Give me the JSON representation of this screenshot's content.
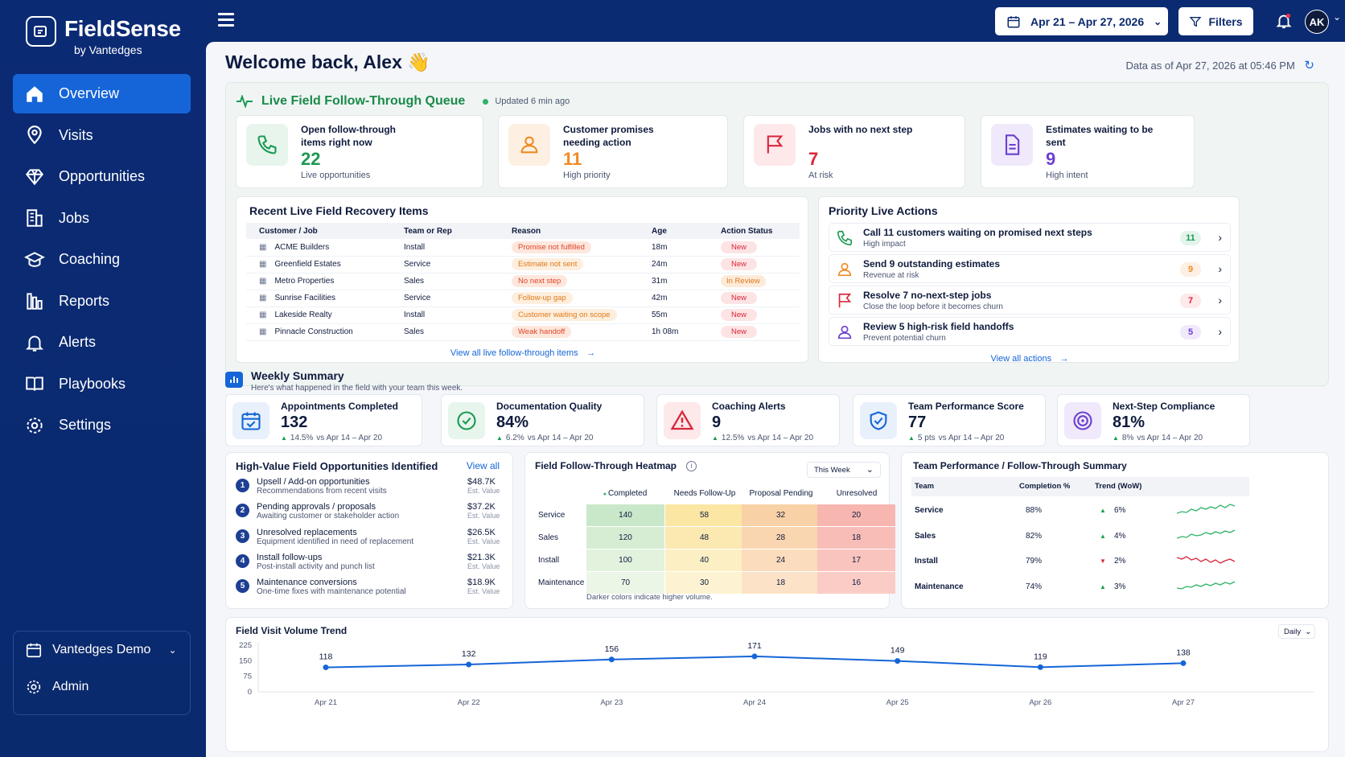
{
  "brand": {
    "name": "FieldSense",
    "byline": "by Vantedges"
  },
  "nav": [
    {
      "label": "Overview",
      "icon": "home-icon",
      "active": true
    },
    {
      "label": "Visits",
      "icon": "map-pin-icon"
    },
    {
      "label": "Opportunities",
      "icon": "diamond-icon"
    },
    {
      "label": "Jobs",
      "icon": "building-icon"
    },
    {
      "label": "Coaching",
      "icon": "graduation-cap-icon"
    },
    {
      "label": "Reports",
      "icon": "bar-chart-icon"
    },
    {
      "label": "Alerts",
      "icon": "bell-icon"
    },
    {
      "label": "Playbooks",
      "icon": "book-icon"
    },
    {
      "label": "Settings",
      "icon": "gear-icon"
    }
  ],
  "org": {
    "name": "Vantedges Demo",
    "admin": "Admin"
  },
  "topbar": {
    "date_range": "Apr 21 – Apr 27, 2026",
    "filters": "Filters",
    "avatar": "AK"
  },
  "header": {
    "welcome": "Welcome back, Alex 👋",
    "as_of": "Data as of Apr 27, 2026 at 05:46 PM"
  },
  "queue": {
    "title": "Live Field Follow-Through Queue",
    "updated": "Updated 6 min ago",
    "kpis": [
      {
        "label": "Open follow-through items right now",
        "value": "22",
        "sub": "Live opportunities",
        "color": "#1a9a52",
        "bg": "#e7f5ec",
        "icon": "phone-icon"
      },
      {
        "label": "Customer promises needing action",
        "value": "11",
        "sub": "High priority",
        "color": "#f08a24",
        "bg": "#fdf0e2",
        "icon": "user-icon"
      },
      {
        "label": "Jobs with no next step",
        "value": "7",
        "sub": "At risk",
        "color": "#d9263a",
        "bg": "#fde8ea",
        "icon": "flag-icon"
      },
      {
        "label": "Estimates waiting to be sent",
        "value": "9",
        "sub": "High intent",
        "color": "#6b3fd1",
        "bg": "#efe9fb",
        "icon": "document-icon"
      }
    ]
  },
  "recent": {
    "title": "Recent Live Field Recovery Items",
    "columns": [
      "Customer / Job",
      "Team or Rep",
      "Reason",
      "Age",
      "Action Status"
    ],
    "rows": [
      {
        "customer": "ACME Builders",
        "team": "Install",
        "reason": "Promise not fulfilled",
        "reason_tone": "r",
        "age": "18m",
        "status": "New"
      },
      {
        "customer": "Greenfield Estates",
        "team": "Service",
        "reason": "Estimate not sent",
        "reason_tone": "o",
        "age": "24m",
        "status": "New"
      },
      {
        "customer": "Metro Properties",
        "team": "Sales",
        "reason": "No next step",
        "reason_tone": "r",
        "age": "31m",
        "status": "In Review"
      },
      {
        "customer": "Sunrise Facilities",
        "team": "Service",
        "reason": "Follow-up gap",
        "reason_tone": "o",
        "age": "42m",
        "status": "New"
      },
      {
        "customer": "Lakeside Realty",
        "team": "Install",
        "reason": "Customer waiting on scope",
        "reason_tone": "o",
        "age": "55m",
        "status": "New"
      },
      {
        "customer": "Pinnacle Construction",
        "team": "Sales",
        "reason": "Weak handoff",
        "reason_tone": "r",
        "age": "1h 08m",
        "status": "New"
      }
    ],
    "view_all": "View all live follow-through items"
  },
  "priority": {
    "title": "Priority Live Actions",
    "items": [
      {
        "title": "Call 11 customers waiting on promised next steps",
        "sub": "High impact",
        "count": "11",
        "color": "#1a9a52",
        "bg": "#e3f4ea",
        "icon": "phone-icon"
      },
      {
        "title": "Send 9 outstanding estimates",
        "sub": "Revenue at risk",
        "count": "9",
        "color": "#f08a24",
        "bg": "#fdf0e2",
        "icon": "user-icon"
      },
      {
        "title": "Resolve 7 no-next-step jobs",
        "sub": "Close the loop before it becomes churn",
        "count": "7",
        "color": "#d9263a",
        "bg": "#fde8ea",
        "icon": "flag-icon"
      },
      {
        "title": "Review 5 high-risk field handoffs",
        "sub": "Prevent potential churn",
        "count": "5",
        "color": "#6b3fd1",
        "bg": "#efe9fb",
        "icon": "user-icon"
      }
    ],
    "view_all": "View all actions"
  },
  "weekly": {
    "title": "Weekly Summary",
    "subtitle": "Here's what happened in the field with your team this week.",
    "stats": [
      {
        "label": "Appointments Completed",
        "value": "132",
        "delta": "14.5%",
        "period": "vs Apr 14 – Apr 20",
        "color": "#1565d8",
        "bg": "#e8f0fc",
        "icon": "calendar-check-icon"
      },
      {
        "label": "Documentation Quality",
        "value": "84%",
        "delta": "6.2%",
        "period": "vs Apr 14 – Apr 20",
        "color": "#1a9a52",
        "bg": "#e7f5ec",
        "icon": "check-circle-icon"
      },
      {
        "label": "Coaching Alerts",
        "value": "9",
        "delta": "12.5%",
        "period": "vs Apr 14 – Apr 20",
        "color": "#d9263a",
        "bg": "#fde8ea",
        "icon": "warning-icon"
      },
      {
        "label": "Team Performance Score",
        "value": "77",
        "delta": "5 pts",
        "period": "vs Apr 14 – Apr 20",
        "color": "#1565d8",
        "bg": "#e8f0fc",
        "icon": "shield-check-icon"
      },
      {
        "label": "Next-Step Compliance",
        "value": "81%",
        "delta": "8%",
        "period": "vs Apr 14 – Apr 20",
        "color": "#6b3fd1",
        "bg": "#efe9fb",
        "icon": "target-icon"
      }
    ]
  },
  "opportunities": {
    "title": "High-Value Field Opportunities Identified",
    "view_all": "View all",
    "items": [
      {
        "n": "1",
        "title": "Upsell / Add-on opportunities",
        "sub": "Recommendations from recent visits",
        "value": "$48.7K",
        "unit": "Est. Value"
      },
      {
        "n": "2",
        "title": "Pending approvals / proposals",
        "sub": "Awaiting customer or stakeholder action",
        "value": "$37.2K",
        "unit": "Est. Value"
      },
      {
        "n": "3",
        "title": "Unresolved replacements",
        "sub": "Equipment identified in need of replacement",
        "value": "$26.5K",
        "unit": "Est. Value"
      },
      {
        "n": "4",
        "title": "Install follow-ups",
        "sub": "Post-install activity and punch list",
        "value": "$21.3K",
        "unit": "Est. Value"
      },
      {
        "n": "5",
        "title": "Maintenance conversions",
        "sub": "One-time fixes with maintenance potential",
        "value": "$18.9K",
        "unit": "Est. Value"
      }
    ]
  },
  "heatmap": {
    "title": "Field Follow-Through Heatmap",
    "selector": "This Week",
    "columns": [
      "Completed",
      "Needs Follow-Up",
      "Proposal Pending",
      "Unresolved"
    ],
    "rows": [
      {
        "label": "Service",
        "values": [
          "140",
          "58",
          "32",
          "20"
        ]
      },
      {
        "label": "Sales",
        "values": [
          "120",
          "48",
          "28",
          "18"
        ]
      },
      {
        "label": "Install",
        "values": [
          "100",
          "40",
          "24",
          "17"
        ]
      },
      {
        "label": "Maintenance",
        "values": [
          "70",
          "30",
          "18",
          "16"
        ]
      }
    ],
    "note": "Darker colors indicate higher volume."
  },
  "team": {
    "title": "Team Performance / Follow-Through Summary",
    "columns": [
      "Team",
      "Completion %",
      "Trend (WoW)"
    ],
    "rows": [
      {
        "team": "Service",
        "completion": "88%",
        "trend": "6%",
        "dir": "up"
      },
      {
        "team": "Sales",
        "completion": "82%",
        "trend": "4%",
        "dir": "up"
      },
      {
        "team": "Install",
        "completion": "79%",
        "trend": "2%",
        "dir": "down"
      },
      {
        "team": "Maintenance",
        "completion": "74%",
        "trend": "3%",
        "dir": "up"
      }
    ]
  },
  "chart_data": {
    "type": "line",
    "title": "Field Visit Volume Trend",
    "selector": "Daily",
    "categories": [
      "Apr 21",
      "Apr 22",
      "Apr 23",
      "Apr 24",
      "Apr 25",
      "Apr 26",
      "Apr 27"
    ],
    "values": [
      118,
      132,
      156,
      171,
      149,
      119,
      138
    ],
    "yticks": [
      "225",
      "150",
      "75",
      "0"
    ],
    "ylim": [
      0,
      225
    ],
    "color": "#1565d8"
  }
}
